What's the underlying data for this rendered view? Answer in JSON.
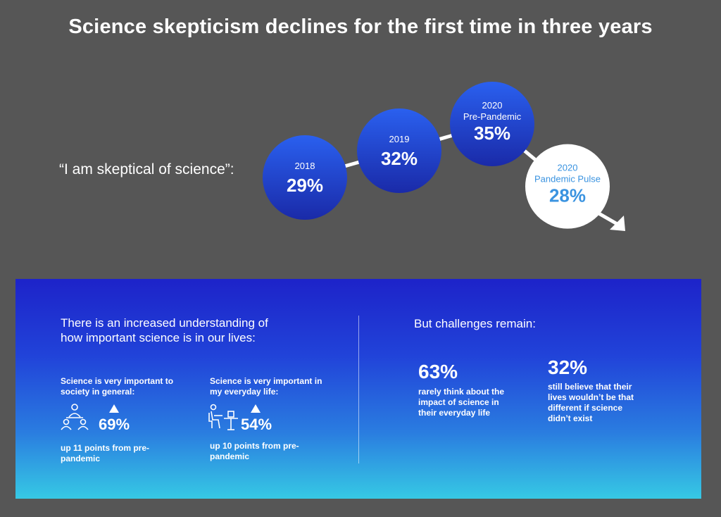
{
  "title": "Science skepticism declines for the first time in three years",
  "quote": "“I am skeptical of science”:",
  "chart_data": {
    "type": "line",
    "categories": [
      "2018",
      "2019",
      "2020 Pre-Pandemic",
      "2020 Pandemic Pulse"
    ],
    "series": [
      {
        "values": [
          29,
          32,
          35,
          28
        ]
      }
    ],
    "points": [
      {
        "year": "2018",
        "subtitle": "",
        "value_label": "29%",
        "value": 29,
        "highlight": false
      },
      {
        "year": "2019",
        "subtitle": "",
        "value_label": "32%",
        "value": 32,
        "highlight": false
      },
      {
        "year": "2020",
        "subtitle": "Pre-Pandemic",
        "value_label": "35%",
        "value": 35,
        "highlight": false
      },
      {
        "year": "2020",
        "subtitle": "Pandemic Pulse",
        "value_label": "28%",
        "value": 28,
        "highlight": true
      }
    ],
    "trend": "down"
  },
  "colors": {
    "background": "#565656",
    "bubble_top": "#2a60ef",
    "bubble_bottom": "#1a2aa8",
    "highlight_text": "#3a93e0",
    "panel_top": "#1d23c9",
    "panel_bottom": "#36c9e4"
  },
  "panel": {
    "left_heading": "There is an increased understanding of how important science is in our lives:",
    "right_heading": "But challenges remain:",
    "stats": [
      {
        "label": "Science is very important to society in general:",
        "value": "69%",
        "note": "up 11 points from pre-pandemic",
        "icon": "people-meeting-icon",
        "direction": "up"
      },
      {
        "label": "Science is very important in my everyday life:",
        "value": "54%",
        "note": "up 10 points from pre-pandemic",
        "icon": "person-at-desk-icon",
        "direction": "up"
      }
    ],
    "challenges": [
      {
        "value": "63%",
        "desc": "rarely think about the impact of science in their everyday life"
      },
      {
        "value": "32%",
        "desc": "still believe that their lives wouldn’t be that different if science didn’t exist"
      }
    ]
  }
}
